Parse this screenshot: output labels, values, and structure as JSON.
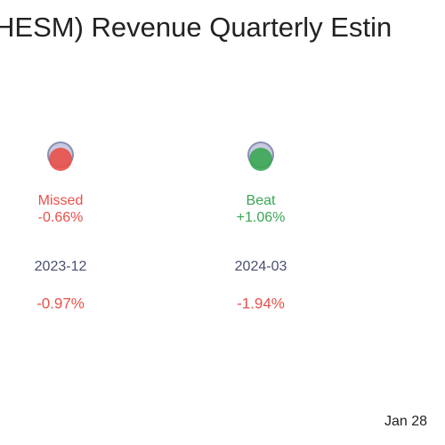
{
  "chart_data": {
    "type": "surprise",
    "title": "HESM) Revenue Quarterly Estin",
    "categories": [
      "2023-12",
      "2024-03"
    ],
    "results": [
      "Missed",
      "Beat"
    ],
    "surprise": {
      "values": [
        -0.66,
        1.06
      ],
      "value_labels": [
        "-0.66%",
        "+1.06%"
      ]
    },
    "change": {
      "values": [
        -0.97,
        -1.94
      ],
      "value_labels": [
        "-0.97%",
        "-1.94%"
      ]
    },
    "colors": {
      "positive": "#3aa655",
      "negative": "#e8504a",
      "estimate": "#8a8fb0",
      "category": "#4a4f6e"
    },
    "footer": "Jan 28"
  }
}
